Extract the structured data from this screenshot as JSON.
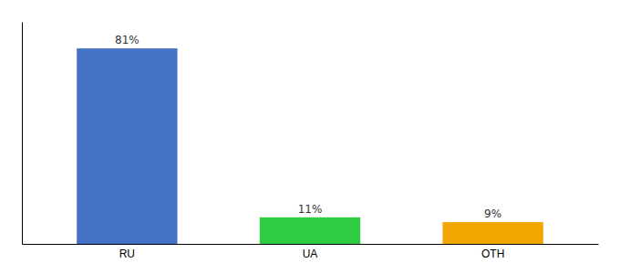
{
  "chart_data": {
    "type": "bar",
    "categories": [
      "RU",
      "UA",
      "OTH"
    ],
    "values": [
      81,
      11,
      9
    ],
    "value_labels": [
      "81%",
      "11%",
      "9%"
    ],
    "colors": [
      "#4472c4",
      "#2ecc40",
      "#f0a500"
    ],
    "ylim": [
      0,
      92
    ],
    "data_labels": true,
    "tick_labels": "x",
    "grid": false
  }
}
